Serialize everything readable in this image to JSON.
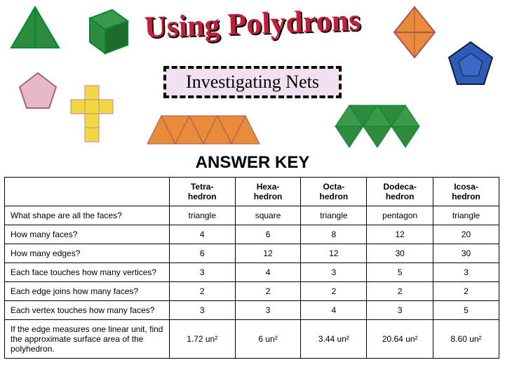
{
  "title": "Using Polydrons",
  "subtitle": "Investigating Nets",
  "answer_key_label": "ANSWER KEY",
  "colors": {
    "title_color": "#c41e3a",
    "title_shadow": "#000000",
    "subtitle_bg": "#f0e0f0",
    "border": "#000000",
    "background": "#ffffff",
    "shape_green": "#2e8b3e",
    "shape_yellow": "#f5d742",
    "shape_orange": "#e88c3c",
    "shape_blue": "#2e5bb8",
    "shape_pink": "#e6b8c8"
  },
  "table": {
    "columns": [
      "",
      "Tetra-\nhedron",
      "Hexa-\nhedron",
      "Octa-\nhedron",
      "Dodeca-\nhedron",
      "Icosa-\nhedron"
    ],
    "rows": [
      {
        "q": "What shape are all the faces?",
        "a": [
          "triangle",
          "square",
          "triangle",
          "pentagon",
          "triangle"
        ]
      },
      {
        "q": "How many faces?",
        "a": [
          "4",
          "6",
          "8",
          "12",
          "20"
        ]
      },
      {
        "q": "How many edges?",
        "a": [
          "6",
          "12",
          "12",
          "30",
          "30"
        ]
      },
      {
        "q": "Each face touches how many vertices?",
        "a": [
          "3",
          "4",
          "3",
          "5",
          "3"
        ]
      },
      {
        "q": "Each edge joins how many faces?",
        "a": [
          "2",
          "2",
          "2",
          "2",
          "2"
        ]
      },
      {
        "q": "Each vertex touches how many faces?",
        "a": [
          "3",
          "3",
          "4",
          "3",
          "5"
        ]
      },
      {
        "q": "If the edge measures one linear unit, find the approximate surface area of the polyhedron.",
        "a": [
          "1.72 un²",
          "6 un²",
          "3.44 un²",
          "20.64 un²",
          "8.60 un²"
        ]
      }
    ]
  }
}
